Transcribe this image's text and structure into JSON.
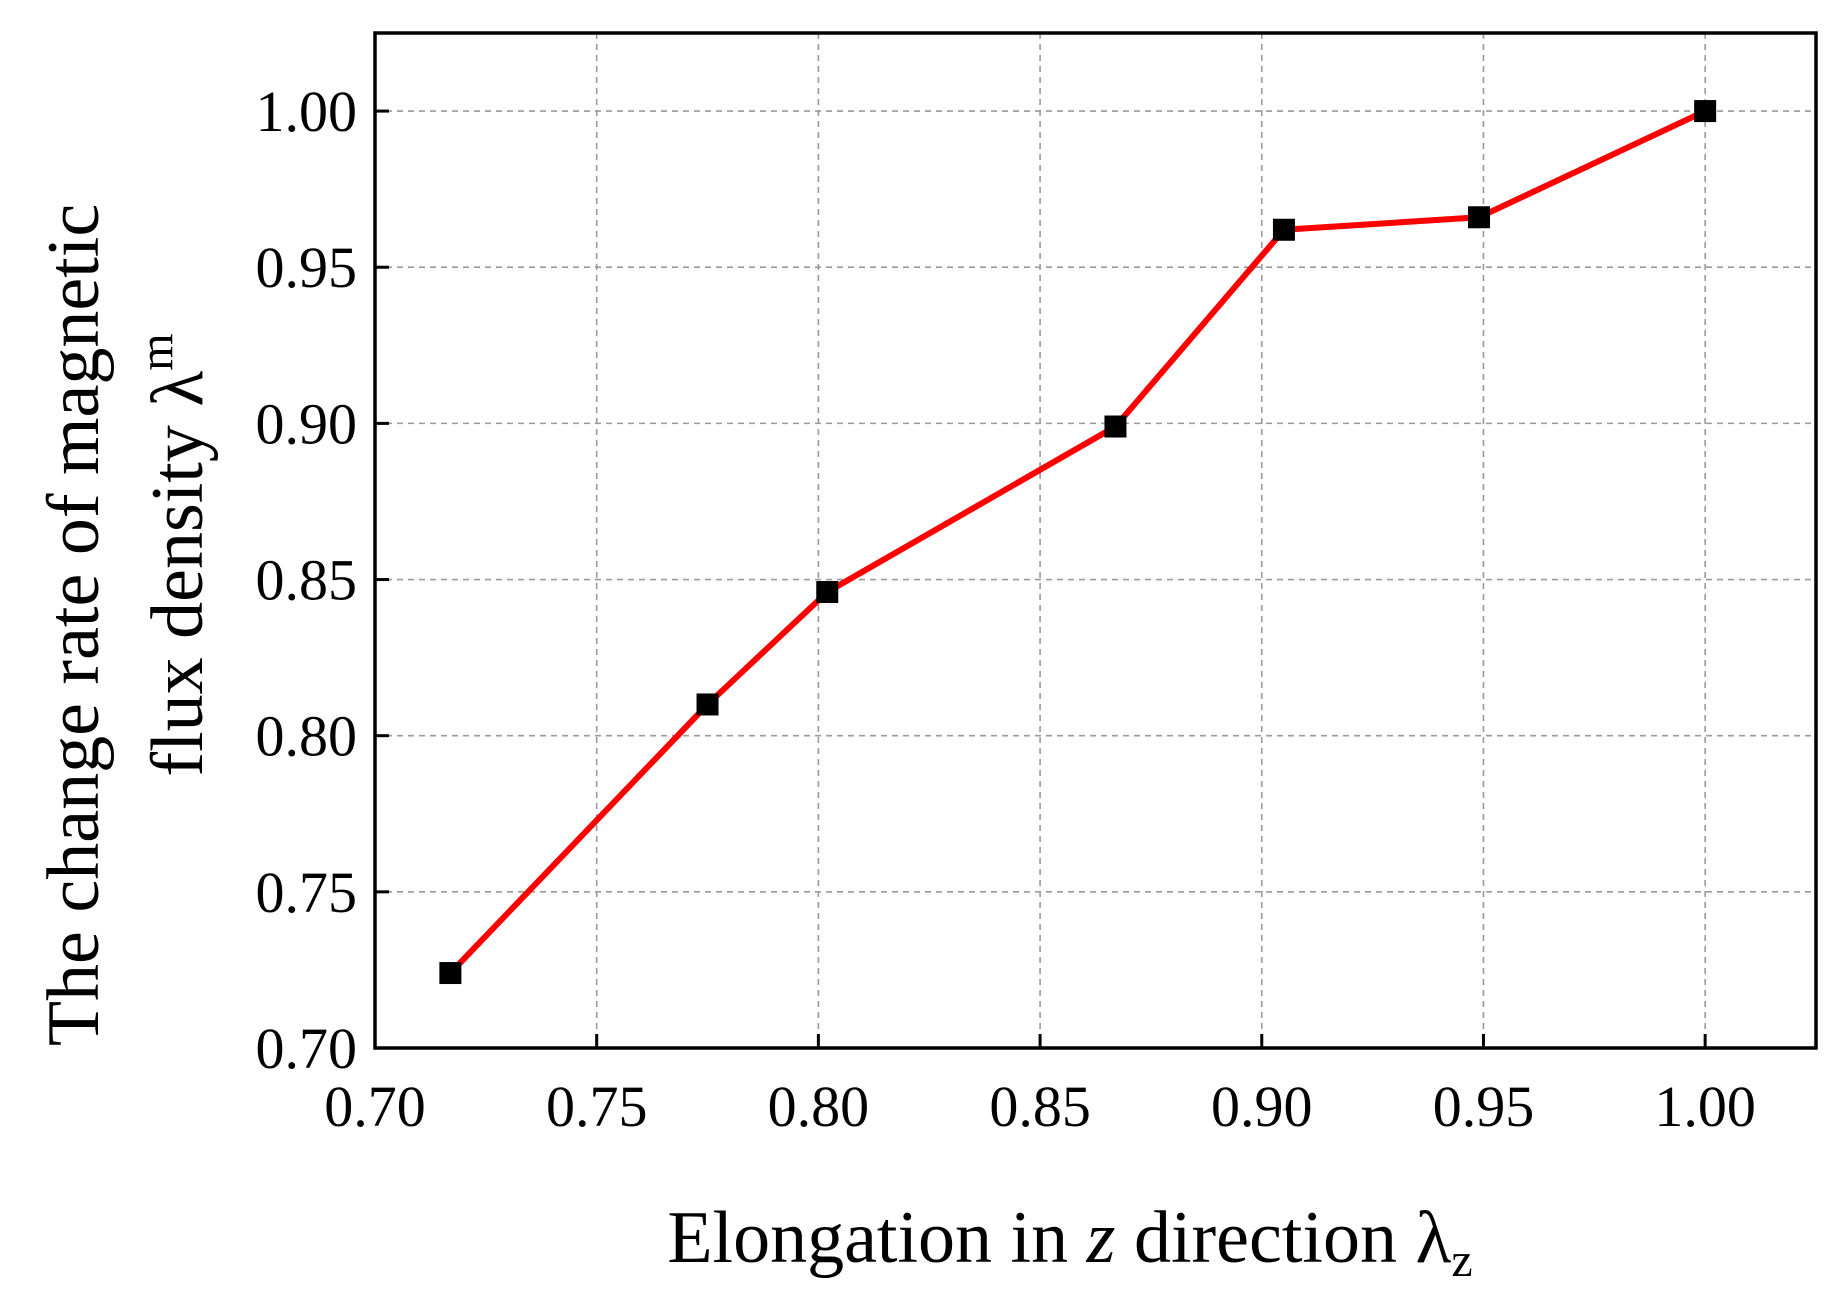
{
  "chart_data": {
    "type": "line",
    "title": "",
    "xlabel": {
      "text": "Elongation in ",
      "italic_var": "z",
      "middle": " direction ",
      "symbol": "λ",
      "subscript": "z"
    },
    "ylabel": {
      "line1": "The change rate of magnetic",
      "line2": "flux density ",
      "symbol": "λ",
      "superscript": "m"
    },
    "xlim": [
      0.7,
      1.025
    ],
    "ylim": [
      0.7,
      1.025
    ],
    "xticks": [
      0.7,
      0.75,
      0.8,
      0.85,
      0.9,
      0.95,
      1.0
    ],
    "yticks": [
      0.7,
      0.75,
      0.8,
      0.85,
      0.9,
      0.95,
      1.0
    ],
    "xtick_labels": [
      "0.70",
      "0.75",
      "0.80",
      "0.85",
      "0.90",
      "0.95",
      "1.00"
    ],
    "ytick_labels": [
      "0.70",
      "0.75",
      "0.80",
      "0.85",
      "0.90",
      "0.95",
      "1.00"
    ],
    "grid": true,
    "series": [
      {
        "color": "#ff0000",
        "marker": "square",
        "marker_color": "#000000",
        "x": [
          0.717,
          0.775,
          0.802,
          0.867,
          0.905,
          0.949,
          1.0
        ],
        "y": [
          0.724,
          0.81,
          0.846,
          0.899,
          0.962,
          0.966,
          1.0
        ]
      }
    ]
  }
}
